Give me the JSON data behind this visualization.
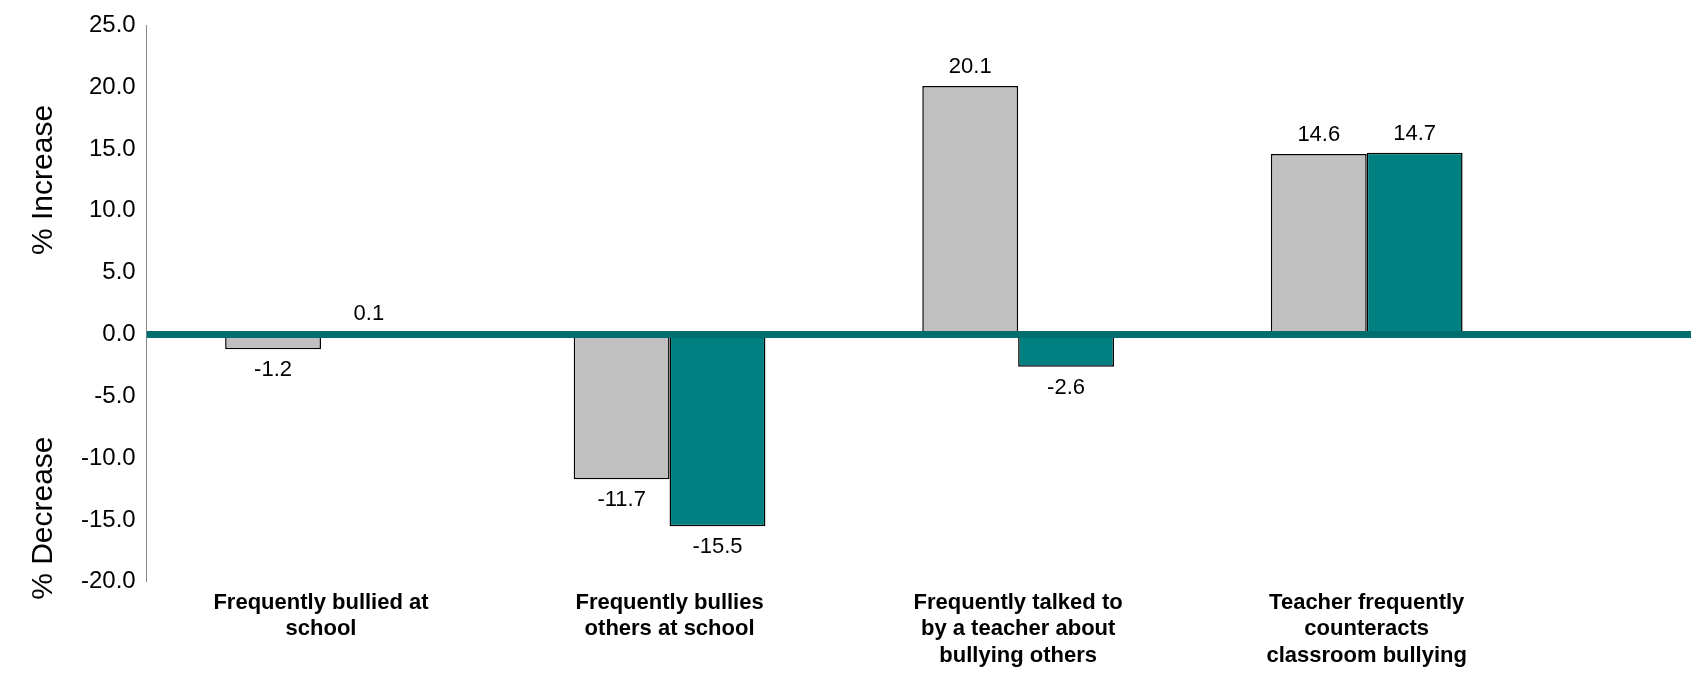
{
  "chart_data": {
    "type": "bar",
    "ylabel": "% Increase",
    "annotations": [
      "% Decrease"
    ],
    "categories": [
      "Frequently bullied at school",
      "Frequently bullies others at school",
      "Frequently talked to by a teacher about bullying others",
      "Teacher frequently counteracts classroom bullying"
    ],
    "series": [
      {
        "color": "#c0c0c0",
        "values": [
          -1.2,
          -11.7,
          20.1,
          14.6
        ]
      },
      {
        "color": "#008080",
        "values": [
          0.1,
          -15.5,
          -2.6,
          14.7
        ]
      }
    ],
    "ylim": [
      -20,
      25
    ],
    "yticks": [
      {
        "value": -20,
        "label": "-20.0"
      },
      {
        "value": -15,
        "label": "-15.0"
      },
      {
        "value": -10,
        "label": "-10.0"
      },
      {
        "value": -5,
        "label": "-5.0"
      },
      {
        "value": 0,
        "label": "0.0"
      },
      {
        "value": 5,
        "label": "5.0"
      },
      {
        "value": 10,
        "label": "10.0"
      },
      {
        "value": 15,
        "label": "15.0"
      },
      {
        "value": 20,
        "label": "20.0"
      },
      {
        "value": 25,
        "label": "25.0"
      }
    ],
    "ref_lines": [
      {
        "axis": "y",
        "value": 0,
        "color": "#006e6e"
      }
    ],
    "data_labels": true,
    "grid": false,
    "legend": false
  }
}
